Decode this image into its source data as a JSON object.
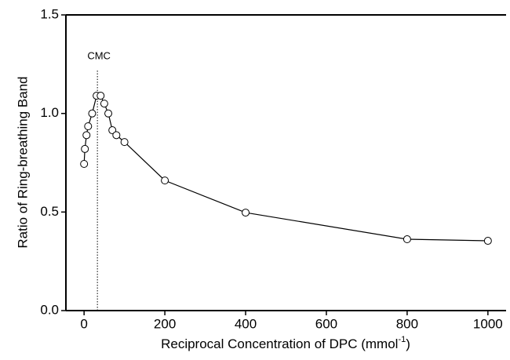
{
  "chart_data": {
    "type": "line",
    "ylabel": "Ratio of Ring-breathing Band",
    "xlabel": {
      "main": "Reciprocal Concentration of DPC (mmol",
      "sup": "-1",
      "end": ")"
    },
    "annotation": {
      "text": "CMC",
      "x": 33
    },
    "x": [
      0,
      2,
      6,
      10,
      20,
      31,
      41,
      50,
      60,
      70,
      80,
      100,
      200,
      400,
      800,
      1000
    ],
    "series": [
      {
        "color": "#000000",
        "values": [
          0.744,
          0.82,
          0.89,
          0.935,
          1.0,
          1.09,
          1.09,
          1.05,
          1.0,
          0.915,
          0.89,
          0.855,
          0.66,
          0.497,
          0.362,
          0.354
        ]
      }
    ],
    "xlim": [
      -45,
      1045
    ],
    "ylim": [
      0,
      1.5
    ],
    "xticks": [
      0,
      200,
      400,
      600,
      800,
      1000
    ],
    "yticks": [
      {
        "value": 0,
        "label": "0.0"
      },
      {
        "value": 0.5,
        "label": "0.5"
      },
      {
        "value": 1,
        "label": "1.0"
      },
      {
        "value": 1.5,
        "label": "1.5"
      }
    ]
  }
}
